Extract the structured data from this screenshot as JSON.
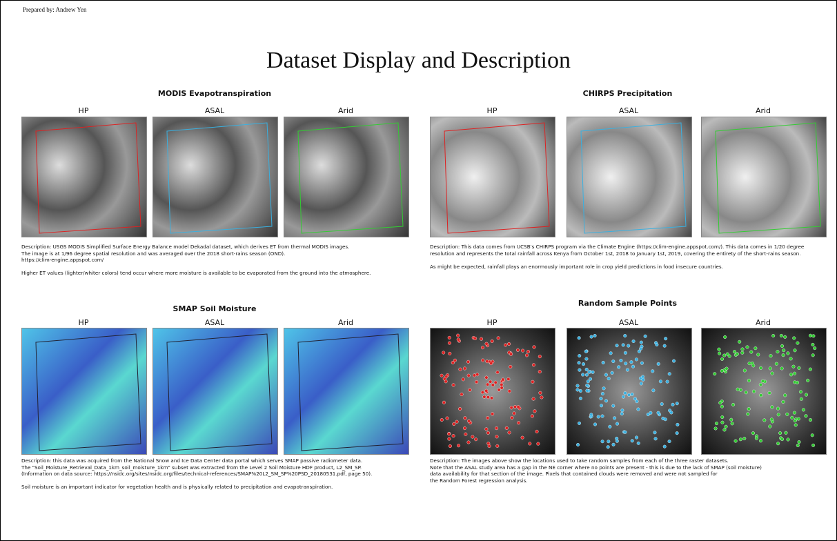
{
  "header": {
    "prepared_by": "Prepared by: Andrew Yen",
    "title": "Dataset Display and Description"
  },
  "panels": [
    {
      "title": "MODIS Evapotranspiration",
      "maps": [
        "HP",
        "ASAL",
        "Arid"
      ],
      "description": [
        [
          "Description: USGS MODIS Simplified Surface Energy Balance model Dekadal dataset, which derives ET from thermal MODIS images.",
          "The image is at 1/96 degree spatial resolution and was averaged over the 2018 short-rains season (OND).",
          "https://clim-engine.appspot.com/"
        ],
        [
          "Higher ET values (lighter/whiter colors) tend occur where more moisture is available to be evaporated from the ground into the atmosphere."
        ]
      ]
    },
    {
      "title": "CHIRPS Precipitation",
      "maps": [
        "HP",
        "ASAL",
        "Arid"
      ],
      "description": [
        [
          "Description: This data comes from UCSB's CHIRPS program via the Climate Engine (https://clim-engine.appspot.com/). This data comes in 1/20 degree",
          "resolution and represents the total rainfall across Kenya from October 1st, 2018 to January 1st, 2019, covering the entirety of the short-rains season."
        ],
        [
          "As might be expected, rainfall plays an enormously important role in crop yield predictions in food insecure countries."
        ]
      ]
    },
    {
      "title": "SMAP Soil Moisture",
      "maps": [
        "HP",
        "ASAL",
        "Arid"
      ],
      "description": [
        [
          "Description: this data was acquired from the National Snow and Ice Data Center data portal which serves SMAP passive radiometer data.",
          "The \"Soil_Moisture_Retrieval_Data_1km_soil_moisture_1km\" subset was extracted from the Level 2 Soil Moisture HDF product, L2_SM_SP.",
          "(Information on data source: https://nsidc.org/sites/nsidc.org/files/technical-references/SMAP%20L2_SM_SP%20PSD_20180531.pdf, page 50)."
        ],
        [
          "Soil moisture is an important indicator for vegetation health and is physically related to precipitation and evapotranspiration."
        ]
      ]
    },
    {
      "title": "Random Sample Points",
      "maps": [
        "HP",
        "ASAL",
        "Arid"
      ],
      "description": [
        [
          "Description: The images above show the locations used to take random samples from each of the three raster datasets.",
          "Note that the ASAL study area has a gap in the NE corner where no points are present - this is due to the lack of SMAP (soil moisture)",
          "data availability for that section of the image. Pixels that contained clouds were removed and were not sampled for",
          "the Random Forest regression analysis."
        ]
      ]
    }
  ]
}
